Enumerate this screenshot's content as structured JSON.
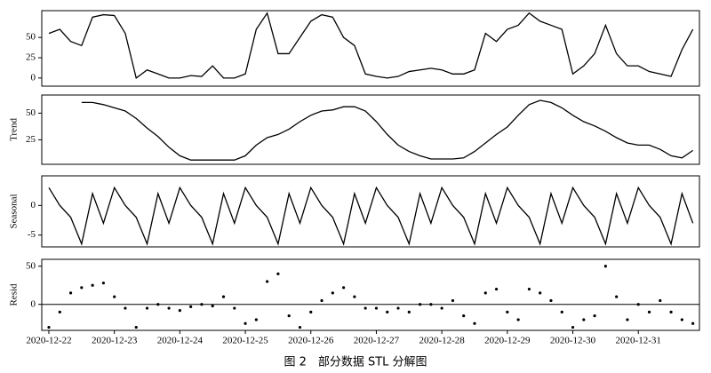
{
  "caption": "图 2　部分数据 STL 分解图",
  "chart_data": [
    {
      "type": "line",
      "color": "#000000",
      "x": [
        0,
        4,
        8,
        12,
        16,
        20,
        24,
        28,
        32,
        36,
        40,
        44,
        48,
        52,
        56,
        60,
        64,
        68,
        72,
        76,
        80,
        84,
        88,
        92,
        96,
        100,
        104,
        108,
        112,
        116,
        120,
        124,
        128,
        132,
        136,
        140,
        144,
        148,
        152,
        156,
        160,
        164,
        168,
        172,
        176,
        180,
        184,
        188,
        192,
        196,
        200,
        204,
        208,
        212,
        216,
        220,
        224,
        228,
        232,
        236
      ],
      "values": [
        55,
        60,
        45,
        40,
        75,
        78,
        77,
        55,
        0,
        10,
        5,
        0,
        0,
        3,
        2,
        15,
        0,
        0,
        5,
        60,
        80,
        30,
        30,
        50,
        70,
        78,
        75,
        50,
        40,
        5,
        2,
        0,
        2,
        8,
        10,
        12,
        10,
        5,
        5,
        10,
        55,
        45,
        60,
        65,
        80,
        70,
        65,
        60,
        5,
        15,
        30,
        65,
        30,
        15,
        15,
        8,
        5,
        2,
        35,
        60
      ],
      "xlim": [
        -2.6,
        238.4
      ],
      "ylim": [
        -10,
        83
      ],
      "yticks": [
        0,
        25,
        50
      ]
    },
    {
      "type": "line",
      "color": "#000000",
      "ylabel": "Trend",
      "x": [
        0,
        4,
        8,
        12,
        16,
        20,
        24,
        28,
        32,
        36,
        40,
        44,
        48,
        52,
        56,
        60,
        64,
        68,
        72,
        76,
        80,
        84,
        88,
        92,
        96,
        100,
        104,
        108,
        112,
        116,
        120,
        124,
        128,
        132,
        136,
        140,
        144,
        148,
        152,
        156,
        160,
        164,
        168,
        172,
        176,
        180,
        184,
        188,
        192,
        196,
        200,
        204,
        208,
        212,
        216,
        220,
        224,
        228,
        232,
        236
      ],
      "values": [
        null,
        null,
        null,
        60,
        60,
        58,
        55,
        52,
        45,
        36,
        28,
        18,
        10,
        6,
        6,
        6,
        6,
        6,
        10,
        20,
        27,
        30,
        35,
        42,
        48,
        52,
        53,
        56,
        56,
        52,
        42,
        30,
        20,
        14,
        10,
        7,
        7,
        7,
        8,
        14,
        22,
        30,
        37,
        48,
        58,
        62,
        60,
        55,
        48,
        42,
        38,
        33,
        27,
        22,
        20,
        20,
        16,
        10,
        8,
        15
      ],
      "xlim": [
        -2.6,
        238.4
      ],
      "ylim": [
        2,
        67
      ],
      "yticks": [
        25,
        50
      ]
    },
    {
      "type": "line",
      "color": "#000000",
      "ylabel": "Seasonal",
      "x": [
        0,
        4,
        8,
        12,
        16,
        20,
        24,
        28,
        32,
        36,
        40,
        44,
        48,
        52,
        56,
        60,
        64,
        68,
        72,
        76,
        80,
        84,
        88,
        92,
        96,
        100,
        104,
        108,
        112,
        116,
        120,
        124,
        128,
        132,
        136,
        140,
        144,
        148,
        152,
        156,
        160,
        164,
        168,
        172,
        176,
        180,
        184,
        188,
        192,
        196,
        200,
        204,
        208,
        212,
        216,
        220,
        224,
        228,
        232,
        236
      ],
      "values": [
        3,
        0,
        -2,
        -6.5,
        2,
        -3,
        3,
        0,
        -2,
        -6.5,
        2,
        -3,
        3,
        0,
        -2,
        -6.5,
        2,
        -3,
        3,
        0,
        -2,
        -6.5,
        2,
        -3,
        3,
        0,
        -2,
        -6.5,
        2,
        -3,
        3,
        0,
        -2,
        -6.5,
        2,
        -3,
        3,
        0,
        -2,
        -6.5,
        2,
        -3,
        3,
        0,
        -2,
        -6.5,
        2,
        -3,
        3,
        0,
        -2,
        -6.5,
        2,
        -3,
        3,
        0,
        -2,
        -6.5,
        2,
        -3
      ],
      "xlim": [
        -2.6,
        238.4
      ],
      "ylim": [
        -7,
        5
      ],
      "yticks": [
        -5,
        0
      ]
    },
    {
      "type": "scatter",
      "color": "#000000",
      "ylabel": "Resid",
      "hline": 0,
      "x": [
        0,
        4,
        8,
        12,
        16,
        20,
        24,
        28,
        32,
        36,
        40,
        44,
        48,
        52,
        56,
        60,
        64,
        68,
        72,
        76,
        80,
        84,
        88,
        92,
        96,
        100,
        104,
        108,
        112,
        116,
        120,
        124,
        128,
        132,
        136,
        140,
        144,
        148,
        152,
        156,
        160,
        164,
        168,
        172,
        176,
        180,
        184,
        188,
        192,
        196,
        200,
        204,
        208,
        212,
        216,
        220,
        224,
        228,
        232,
        236
      ],
      "values": [
        -30,
        -10,
        15,
        22,
        25,
        28,
        10,
        -5,
        -30,
        -5,
        0,
        -5,
        -8,
        -3,
        0,
        -2,
        10,
        -5,
        -25,
        -20,
        30,
        40,
        -15,
        -30,
        -10,
        5,
        15,
        22,
        10,
        -5,
        -5,
        -10,
        -5,
        -10,
        0,
        0,
        -5,
        5,
        -15,
        -25,
        15,
        20,
        -10,
        -20,
        20,
        15,
        5,
        -10,
        -30,
        -20,
        -15,
        50,
        10,
        -20,
        0,
        -10,
        5,
        -10,
        -20,
        -25
      ],
      "xlim": [
        -2.6,
        238.4
      ],
      "ylim": [
        -34,
        59
      ],
      "yticks": [
        0,
        50
      ],
      "xticks": [
        {
          "value": 0,
          "label": "2020-12-22"
        },
        {
          "value": 24,
          "label": "2020-12-23"
        },
        {
          "value": 48,
          "label": "2020-12-24"
        },
        {
          "value": 72,
          "label": "2020-12-25"
        },
        {
          "value": 96,
          "label": "2020-12-26"
        },
        {
          "value": 120,
          "label": "2020-12-27"
        },
        {
          "value": 144,
          "label": "2020-12-28"
        },
        {
          "value": 168,
          "label": "2020-12-29"
        },
        {
          "value": 192,
          "label": "2020-12-30"
        },
        {
          "value": 216,
          "label": "2020-12-31"
        }
      ]
    }
  ]
}
